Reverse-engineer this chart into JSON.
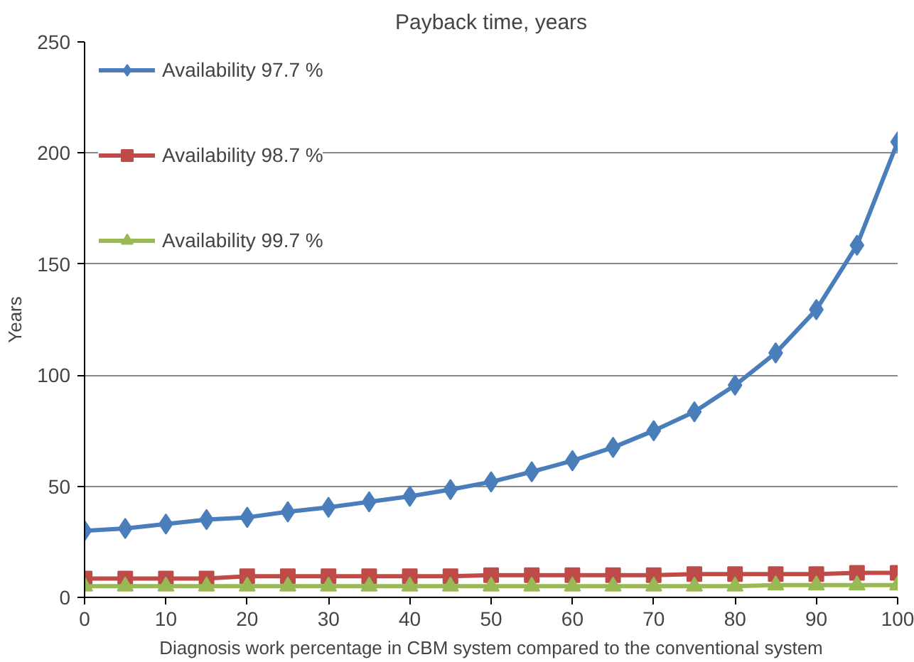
{
  "chart_data": {
    "type": "line",
    "title": "Payback time, years",
    "xlabel": "Diagnosis work percentage in CBM system compared to the conventional system",
    "ylabel": "Years",
    "x": [
      0,
      5,
      10,
      15,
      20,
      25,
      30,
      35,
      40,
      45,
      50,
      55,
      60,
      65,
      70,
      75,
      80,
      85,
      90,
      95,
      100
    ],
    "series": [
      {
        "name": "Availability 97.7 %",
        "color": "#4a7ebb",
        "marker": "diamond",
        "values": [
          30,
          31,
          33,
          35,
          36,
          38.5,
          40.5,
          43,
          45.5,
          48.5,
          52,
          56.5,
          61.5,
          67.5,
          75,
          83.5,
          95.5,
          110,
          129.5,
          158.5,
          205
        ]
      },
      {
        "name": "Availability 98.7 %",
        "color": "#be4b48",
        "marker": "square",
        "values": [
          8.5,
          8.5,
          8.5,
          8.5,
          9.5,
          9.5,
          9.5,
          9.5,
          9.5,
          9.5,
          10,
          10,
          10,
          10,
          10,
          10.5,
          10.5,
          10.5,
          10.5,
          11,
          11
        ]
      },
      {
        "name": "Availability 99.7 %",
        "color": "#98b954",
        "marker": "triangle",
        "values": [
          5,
          5,
          5,
          5,
          5,
          5,
          5,
          5,
          5,
          5,
          5,
          5,
          5,
          5,
          5,
          5,
          5,
          5.5,
          5.5,
          5.5,
          5.5
        ]
      }
    ],
    "xlim": [
      0,
      100
    ],
    "xticks": [
      0,
      10,
      20,
      30,
      40,
      50,
      60,
      70,
      80,
      90,
      100
    ],
    "ylim": [
      0,
      250
    ],
    "yticks": [
      0,
      50,
      100,
      150,
      200,
      250
    ],
    "grid": "y",
    "legend": "top left",
    "line_style": "solid"
  }
}
